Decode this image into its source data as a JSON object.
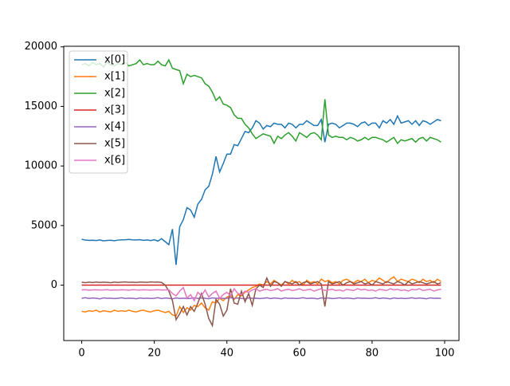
{
  "chart_data": {
    "type": "line",
    "x": [
      0,
      1,
      2,
      3,
      4,
      5,
      6,
      7,
      8,
      9,
      10,
      11,
      12,
      13,
      14,
      15,
      16,
      17,
      18,
      19,
      20,
      21,
      22,
      23,
      24,
      25,
      26,
      27,
      28,
      29,
      30,
      31,
      32,
      33,
      34,
      35,
      36,
      37,
      38,
      39,
      40,
      41,
      42,
      43,
      44,
      45,
      46,
      47,
      48,
      49,
      50,
      51,
      52,
      53,
      54,
      55,
      56,
      57,
      58,
      59,
      60,
      61,
      62,
      63,
      64,
      65,
      66,
      67,
      68,
      69,
      70,
      71,
      72,
      73,
      74,
      75,
      76,
      77,
      78,
      79,
      80,
      81,
      82,
      83,
      84,
      85,
      86,
      87,
      88,
      89,
      90,
      91,
      92,
      93,
      94,
      95,
      96,
      97,
      98,
      99
    ],
    "series": [
      {
        "name": "x[0]",
        "color": "#1f77b4",
        "values": [
          3850,
          3780,
          3760,
          3770,
          3740,
          3790,
          3720,
          3750,
          3770,
          3730,
          3780,
          3800,
          3810,
          3830,
          3800,
          3790,
          3820,
          3760,
          3790,
          3740,
          3810,
          3700,
          3900,
          3650,
          3400,
          4700,
          1700,
          4900,
          5500,
          6500,
          6300,
          5700,
          6800,
          7200,
          8000,
          8300,
          9300,
          10800,
          9500,
          10200,
          11000,
          11000,
          11800,
          11700,
          12300,
          12900,
          12800,
          13200,
          13800,
          13600,
          13100,
          13400,
          13300,
          13600,
          13500,
          13500,
          13200,
          13600,
          13500,
          13200,
          13500,
          13500,
          13800,
          13600,
          13400,
          13400,
          13900,
          12000,
          13500,
          13600,
          13500,
          13200,
          13400,
          13600,
          13600,
          13500,
          13300,
          13600,
          13700,
          13400,
          13600,
          13600,
          13200,
          13800,
          13600,
          13900,
          13500,
          14200,
          13600,
          13700,
          13800,
          13500,
          13800,
          13400,
          13800,
          13700,
          13500,
          13700,
          13900,
          13800
        ]
      },
      {
        "name": "x[1]",
        "color": "#ff7f0e",
        "values": [
          -2200,
          -2250,
          -2150,
          -2200,
          -2100,
          -2250,
          -2150,
          -2200,
          -2250,
          -2100,
          -2200,
          -2150,
          -2200,
          -2100,
          -2200,
          -2250,
          -2150,
          -2100,
          -2200,
          -2250,
          -2150,
          -2100,
          -2200,
          -2300,
          -2200,
          -2500,
          -2600,
          -1800,
          -2300,
          -1900,
          -2100,
          -1700,
          -1800,
          -1500,
          -1900,
          -2100,
          -1400,
          -1500,
          -1100,
          -1300,
          -1000,
          -900,
          -1200,
          -800,
          -900,
          -600,
          -400,
          -200,
          -100,
          100,
          0,
          300,
          100,
          400,
          200,
          0,
          300,
          100,
          400,
          200,
          300,
          0,
          400,
          200,
          300,
          100,
          500,
          300,
          400,
          200,
          300,
          100,
          400,
          500,
          300,
          200,
          400,
          300,
          500,
          200,
          400,
          300,
          600,
          400,
          200,
          500,
          700,
          300,
          500,
          400,
          300,
          500,
          400,
          200,
          500,
          300,
          400,
          200,
          500,
          300
        ]
      },
      {
        "name": "x[2]",
        "color": "#2ca02c",
        "values": [
          18500,
          18600,
          18400,
          18700,
          18500,
          18600,
          18300,
          18700,
          18500,
          18400,
          18600,
          18500,
          18700,
          18400,
          18500,
          18600,
          18900,
          18500,
          18600,
          18500,
          18500,
          18800,
          18500,
          18400,
          18900,
          18200,
          18100,
          18000,
          16900,
          17700,
          17500,
          17600,
          17500,
          17400,
          16900,
          16700,
          16200,
          15500,
          15800,
          15200,
          15100,
          14900,
          14300,
          14000,
          14000,
          13500,
          13200,
          12700,
          12300,
          12500,
          12700,
          12600,
          12500,
          11900,
          12500,
          12300,
          12600,
          12800,
          12500,
          12100,
          12800,
          12600,
          12400,
          12700,
          12800,
          12600,
          12200,
          15600,
          12600,
          12400,
          12500,
          12400,
          12400,
          12200,
          12400,
          12300,
          12100,
          12200,
          12400,
          12200,
          12400,
          12400,
          12300,
          12200,
          12000,
          12200,
          12400,
          11900,
          12200,
          12100,
          12200,
          12300,
          12000,
          12300,
          12400,
          12100,
          12400,
          12300,
          12200,
          12000
        ]
      },
      {
        "name": "x[3]",
        "color": "#d62728",
        "values": [
          0,
          0,
          0,
          0,
          0,
          0,
          0,
          0,
          0,
          0,
          0,
          0,
          0,
          0,
          0,
          0,
          0,
          0,
          0,
          0,
          0,
          0,
          0,
          0,
          0,
          0,
          0,
          0,
          0,
          0,
          0,
          0,
          0,
          0,
          0,
          0,
          0,
          0,
          0,
          0,
          0,
          0,
          0,
          0,
          0,
          0,
          0,
          0,
          0,
          0,
          0,
          0,
          0,
          0,
          0,
          0,
          0,
          0,
          0,
          0,
          0,
          0,
          0,
          0,
          0,
          0,
          0,
          0,
          0,
          0,
          0,
          0,
          0,
          0,
          0,
          0,
          0,
          0,
          0,
          0,
          0,
          0,
          0,
          0,
          0,
          0,
          0,
          0,
          0,
          0,
          0,
          0,
          0,
          0,
          0,
          0,
          0,
          0,
          0,
          0
        ]
      },
      {
        "name": "x[4]",
        "color": "#9467bd",
        "values": [
          -1100,
          -1050,
          -1120,
          -1080,
          -1100,
          -1150,
          -1070,
          -1100,
          -1090,
          -1130,
          -1100,
          -1060,
          -1120,
          -1090,
          -1100,
          -1140,
          -1080,
          -1110,
          -1090,
          -1120,
          -1100,
          -1050,
          -1130,
          -1080,
          -1100,
          -1150,
          -1070,
          -1120,
          -1090,
          -1130,
          -1110,
          -1060,
          -1120,
          -1080,
          -1100,
          -1140,
          -1070,
          -1100,
          -1090,
          -1120,
          -1100,
          -1050,
          -1120,
          -1080,
          -1110,
          -1150,
          -1070,
          -1100,
          -1090,
          -1130,
          -1100,
          -1060,
          -1130,
          -1080,
          -1100,
          -1140,
          -1070,
          -1110,
          -1090,
          -1120,
          -1100,
          -1050,
          -1120,
          -1090,
          -1100,
          -1150,
          -1070,
          -1100,
          -1080,
          -1130,
          -1110,
          -1060,
          -1120,
          -1080,
          -1100,
          -1140,
          -1070,
          -1100,
          -1090,
          -1120,
          -1100,
          -1050,
          -1130,
          -1080,
          -1100,
          -1150,
          -1070,
          -1120,
          -1090,
          -1130,
          -1100,
          -1060,
          -1120,
          -1080,
          -1110,
          -1140,
          -1070,
          -1100,
          -1090,
          -1120
        ]
      },
      {
        "name": "x[5]",
        "color": "#8c564b",
        "values": [
          250,
          200,
          250,
          220,
          260,
          230,
          250,
          240,
          200,
          260,
          230,
          250,
          270,
          240,
          250,
          230,
          260,
          250,
          240,
          270,
          250,
          260,
          230,
          0,
          -500,
          -1300,
          -2900,
          -2400,
          -1800,
          -2500,
          -1800,
          -2200,
          -1500,
          -700,
          -1600,
          -2800,
          -3400,
          -1200,
          -1600,
          -2600,
          -2100,
          -300,
          -1500,
          -1600,
          -500,
          -1400,
          -700,
          -1700,
          -300,
          0,
          -200,
          600,
          -100,
          300,
          200,
          -100,
          300,
          200,
          100,
          300,
          0,
          200,
          300,
          100,
          200,
          300,
          100,
          -1800,
          300,
          100,
          200,
          300,
          0,
          200,
          300,
          100,
          200,
          300,
          100,
          200,
          0,
          300,
          200,
          100,
          300,
          200,
          100,
          300,
          200,
          0,
          300,
          100,
          200,
          300,
          200,
          100,
          200,
          300,
          100,
          200
        ]
      },
      {
        "name": "x[6]",
        "color": "#e377c2",
        "values": [
          -400,
          -380,
          -420,
          -400,
          -390,
          -410,
          -400,
          -380,
          -420,
          -400,
          -410,
          -390,
          -400,
          -420,
          -380,
          -400,
          -410,
          -390,
          -400,
          -420,
          -400,
          -380,
          -410,
          -400,
          -390,
          -700,
          -900,
          -500,
          -200,
          -1100,
          -800,
          -1300,
          -600,
          -900,
          -400,
          -1000,
          -700,
          -500,
          -1100,
          -800,
          -600,
          -900,
          -300,
          -700,
          -800,
          -500,
          -600,
          -400,
          -300,
          -500,
          -400,
          -350,
          -450,
          -400,
          -300,
          -500,
          -400,
          -350,
          -450,
          -400,
          -300,
          -450,
          -400,
          -350,
          -500,
          -400,
          -300,
          -450,
          -400,
          -350,
          -450,
          -400,
          -500,
          -350,
          -400,
          -450,
          -300,
          -400,
          -350,
          -450,
          -400,
          -500,
          -350,
          -400,
          -450,
          -300,
          -400,
          -350,
          -450,
          -400,
          -500,
          -350,
          -400,
          -300,
          -450,
          -400,
          -350,
          -500,
          -400,
          -350
        ]
      }
    ],
    "xlim": [
      -4.95,
      103.95
    ],
    "ylim": [
      -4650,
      20050
    ],
    "xticks": [
      0,
      20,
      40,
      60,
      80,
      100
    ],
    "yticks": [
      0,
      5000,
      10000,
      15000,
      20000
    ],
    "legend": "upper left"
  }
}
